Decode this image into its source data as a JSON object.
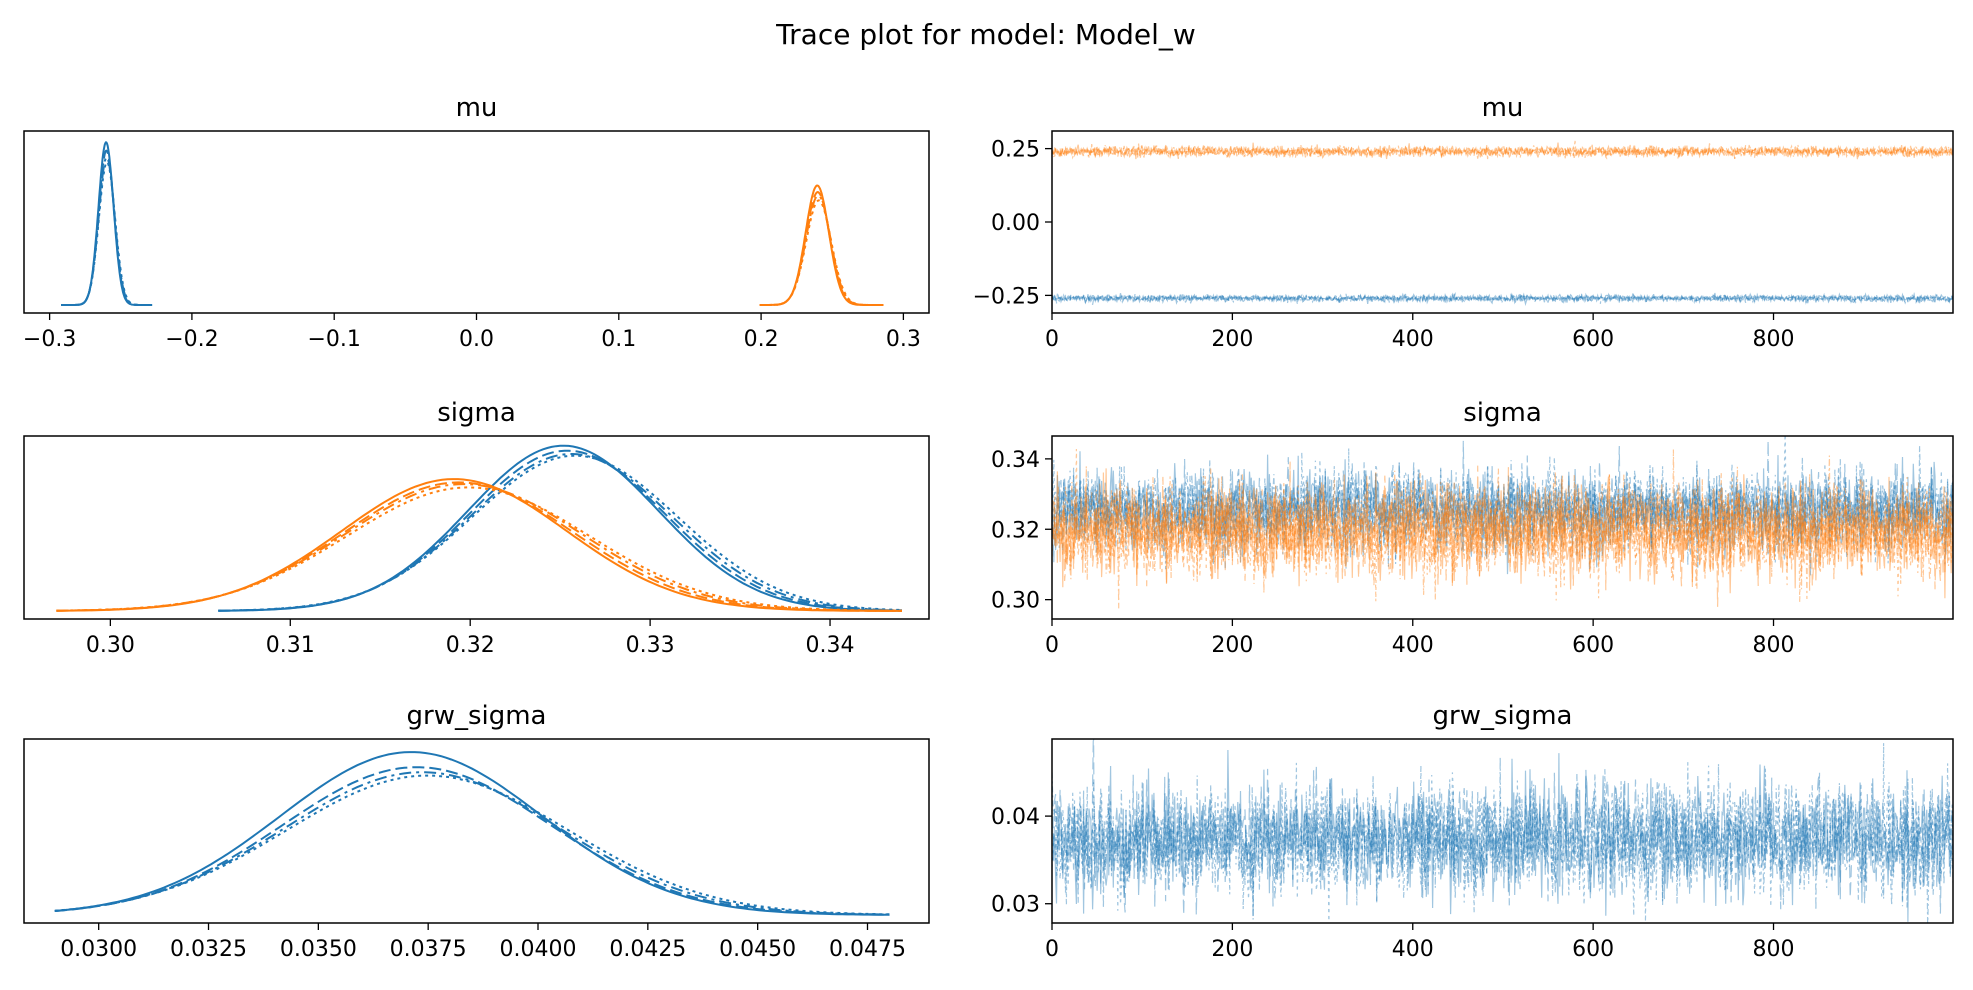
{
  "figure": {
    "title": "Trace plot for model: Model_w",
    "colors": {
      "chain_blue": "#1f77b4",
      "chain_orange": "#ff7f0e",
      "axes": "#000000"
    }
  },
  "chart_data": [
    {
      "type": "line",
      "panel": "kde",
      "title": "mu",
      "xlabel": "",
      "ylabel": "",
      "xlim": [
        -0.318,
        0.318
      ],
      "x_ticks": [
        -0.3,
        -0.2,
        -0.1,
        0.0,
        0.1,
        0.2,
        0.3
      ],
      "x_tick_labels": [
        "−0.3",
        "−0.2",
        "−0.1",
        "0.0",
        "0.1",
        "0.2",
        "0.3"
      ],
      "y_ticks_visible": false,
      "series": [
        {
          "color": "#1f77b4",
          "mean": -0.26,
          "sd": 0.0055,
          "x_range": [
            -0.292,
            -0.228
          ],
          "peak_heights": [
            0.98,
            0.93,
            0.89,
            0.86
          ]
        },
        {
          "color": "#ff7f0e",
          "mean": 0.24,
          "sd": 0.0085,
          "x_range": [
            0.199,
            0.286
          ],
          "peak_heights": [
            0.72,
            0.68,
            0.66,
            0.63
          ]
        }
      ]
    },
    {
      "type": "line",
      "panel": "trace",
      "title": "mu",
      "xlabel": "",
      "ylabel": "",
      "xlim": [
        0,
        999
      ],
      "ylim": [
        -0.31,
        0.31
      ],
      "x_ticks": [
        0,
        200,
        400,
        600,
        800
      ],
      "x_tick_labels": [
        "0",
        "200",
        "400",
        "600",
        "800"
      ],
      "y_ticks": [
        -0.25,
        0.0,
        0.25
      ],
      "y_tick_labels": [
        "−0.25",
        "0.00",
        "0.25"
      ],
      "draws_per_chain": 1000,
      "series": [
        {
          "color": "#1f77b4",
          "mean": -0.26,
          "sd": 0.0055
        },
        {
          "color": "#ff7f0e",
          "mean": 0.24,
          "sd": 0.0085
        }
      ]
    },
    {
      "type": "line",
      "panel": "kde",
      "title": "sigma",
      "xlabel": "",
      "ylabel": "",
      "xlim": [
        0.2952,
        0.3455
      ],
      "x_ticks": [
        0.3,
        0.31,
        0.32,
        0.33,
        0.34
      ],
      "x_tick_labels": [
        "0.30",
        "0.31",
        "0.32",
        "0.33",
        "0.34"
      ],
      "y_ticks_visible": false,
      "series": [
        {
          "color": "#1f77b4",
          "mean": 0.3255,
          "sd": 0.0055,
          "x_range": [
            0.306,
            0.344
          ],
          "peak_heights": [
            0.99,
            0.96,
            0.94,
            0.93
          ]
        },
        {
          "color": "#ff7f0e",
          "mean": 0.3195,
          "sd": 0.0065,
          "x_range": [
            0.297,
            0.344
          ],
          "peak_heights": [
            0.79,
            0.77,
            0.76,
            0.74
          ]
        }
      ]
    },
    {
      "type": "line",
      "panel": "trace",
      "title": "sigma",
      "xlabel": "",
      "ylabel": "",
      "xlim": [
        0,
        999
      ],
      "ylim": [
        0.2945,
        0.3465
      ],
      "x_ticks": [
        0,
        200,
        400,
        600,
        800
      ],
      "x_tick_labels": [
        "0",
        "200",
        "400",
        "600",
        "800"
      ],
      "y_ticks": [
        0.3,
        0.32,
        0.34
      ],
      "y_tick_labels": [
        "0.30",
        "0.32",
        "0.34"
      ],
      "draws_per_chain": 1000,
      "series": [
        {
          "color": "#1f77b4",
          "mean": 0.3255,
          "sd": 0.0055
        },
        {
          "color": "#ff7f0e",
          "mean": 0.3195,
          "sd": 0.0065
        }
      ]
    },
    {
      "type": "line",
      "panel": "kde",
      "title": "grw_sigma",
      "xlabel": "",
      "ylabel": "",
      "xlim": [
        0.0283,
        0.0489
      ],
      "x_ticks": [
        0.03,
        0.0325,
        0.035,
        0.0375,
        0.04,
        0.0425,
        0.045,
        0.0475
      ],
      "x_tick_labels": [
        "0.0300",
        "0.0325",
        "0.0350",
        "0.0375",
        "0.0400",
        "0.0425",
        "0.0450",
        "0.0475"
      ],
      "y_ticks_visible": false,
      "series": [
        {
          "color": "#1f77b4",
          "mean": 0.0373,
          "sd": 0.0031,
          "x_range": [
            0.029,
            0.048
          ],
          "peak_heights": [
            0.97,
            0.88,
            0.85,
            0.83
          ]
        }
      ]
    },
    {
      "type": "line",
      "panel": "trace",
      "title": "grw_sigma",
      "xlabel": "",
      "ylabel": "",
      "xlim": [
        0,
        999
      ],
      "ylim": [
        0.0278,
        0.0488
      ],
      "x_ticks": [
        0,
        200,
        400,
        600,
        800
      ],
      "x_tick_labels": [
        "0",
        "200",
        "400",
        "600",
        "800"
      ],
      "y_ticks": [
        0.03,
        0.04
      ],
      "y_tick_labels": [
        "0.03",
        "0.04"
      ],
      "draws_per_chain": 1000,
      "series": [
        {
          "color": "#1f77b4",
          "mean": 0.0373,
          "sd": 0.0031
        }
      ]
    }
  ]
}
